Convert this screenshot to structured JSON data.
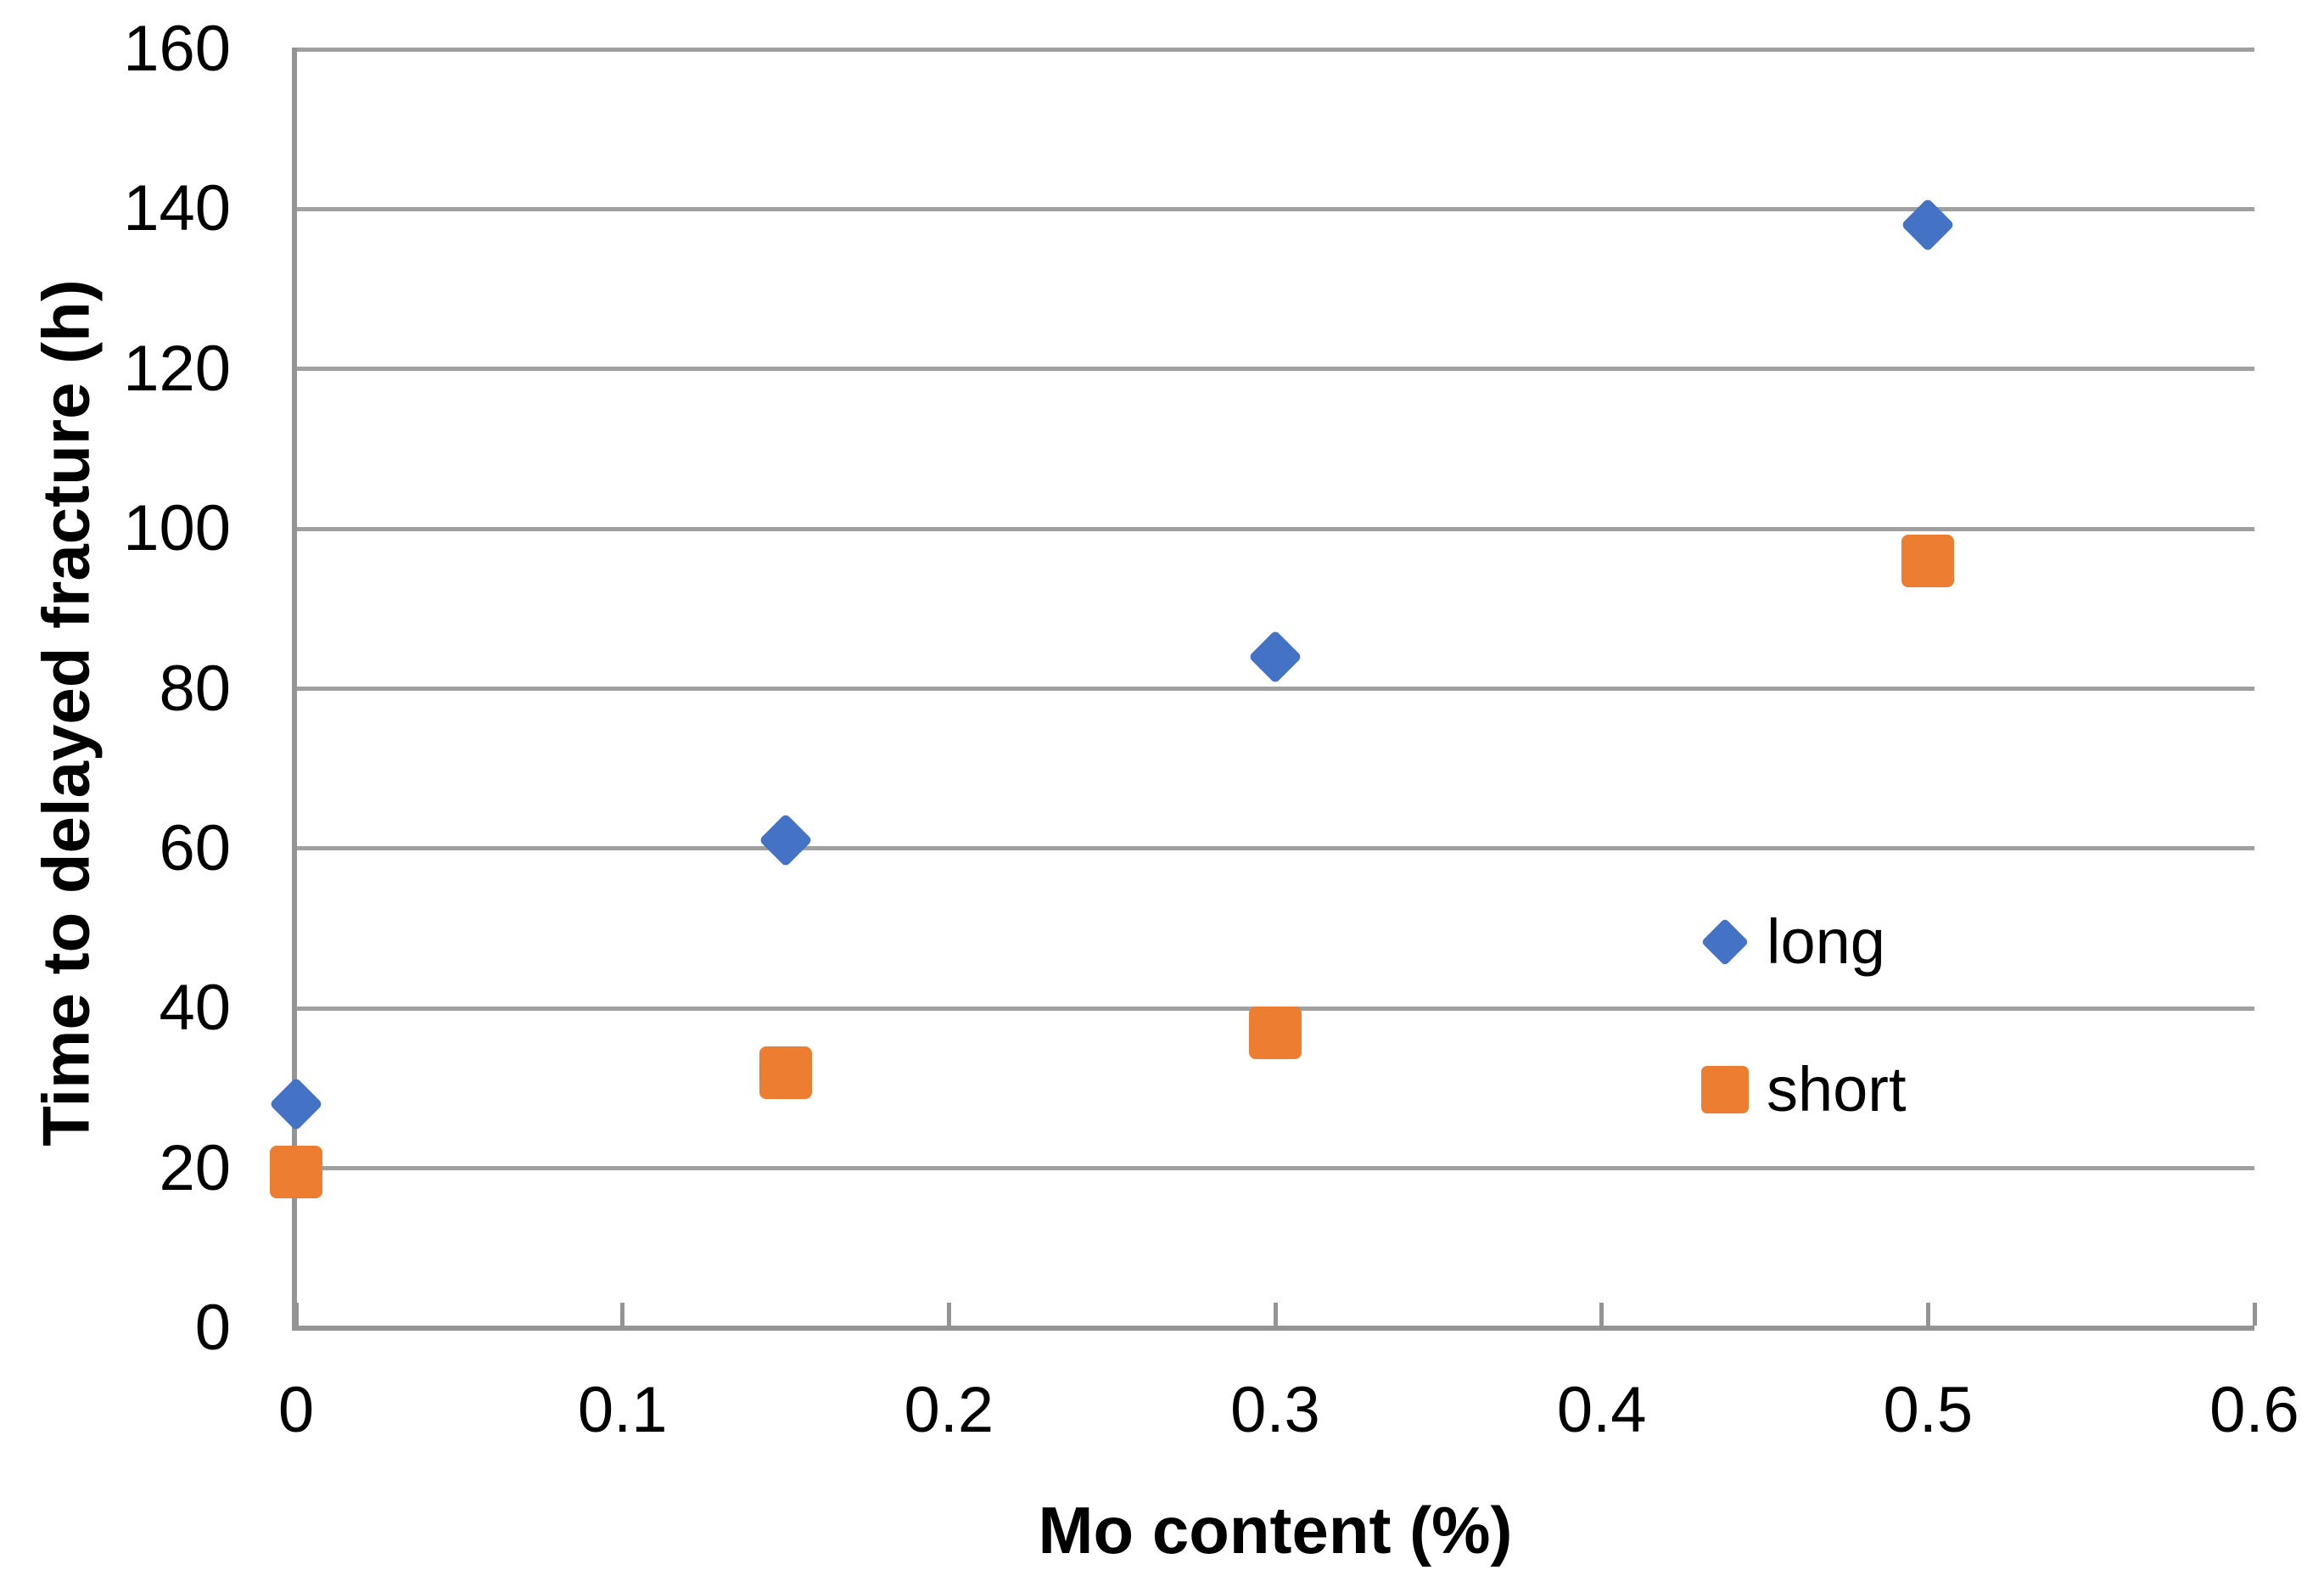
{
  "chart_data": {
    "type": "scatter",
    "title": "",
    "xlabel": "Mo content (%)",
    "ylabel": "Time to delayed fracture (h)",
    "x": [
      0,
      0.15,
      0.3,
      0.5
    ],
    "series": [
      {
        "name": "long",
        "marker": "diamond",
        "color": "#4472C4",
        "values": [
          28,
          61,
          84,
          138
        ]
      },
      {
        "name": "short",
        "marker": "square",
        "color": "#ED7D31",
        "values": [
          19.5,
          32,
          37,
          96
        ]
      }
    ],
    "xlim": [
      0,
      0.6
    ],
    "ylim": [
      0,
      160
    ],
    "x_tick_values": [
      0,
      0.1,
      0.2,
      0.3,
      0.4,
      0.5,
      0.6
    ],
    "x_tick_labels": [
      "0",
      "0.1",
      "0.2",
      "0.3",
      "0.4",
      "0.5",
      "0.6"
    ],
    "y_tick_values": [
      0,
      20,
      40,
      60,
      80,
      100,
      120,
      140,
      160
    ],
    "y_tick_labels": [
      "0",
      "20",
      "40",
      "60",
      "80",
      "100",
      "120",
      "140",
      "160"
    ],
    "grid": "horizontal-only",
    "gridline_color": "#A0A0A0",
    "axis_color": "#949494",
    "text_color": "#000000",
    "legend": {
      "position": "inside-right",
      "entries": [
        "long",
        "short"
      ]
    }
  }
}
